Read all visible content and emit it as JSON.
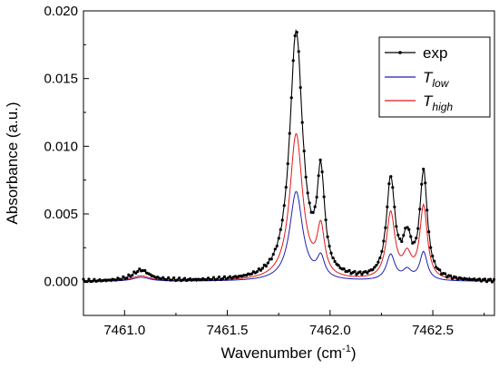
{
  "chart_data": {
    "type": "line",
    "title": "",
    "xlabel": "Wavenumber (cm",
    "xlabel_sup": "-1",
    "xlabel_tail": ")",
    "ylabel": "Absorbance (a.u.)",
    "xlim": [
      7460.8,
      7462.8
    ],
    "ylim": [
      -0.0025,
      0.02
    ],
    "xticks": [
      7461.0,
      7461.5,
      7462.0,
      7462.5
    ],
    "xtick_labels": [
      "7461.0",
      "7461.5",
      "7462.0",
      "7462.5"
    ],
    "yticks": [
      0.0,
      0.005,
      0.01,
      0.015,
      0.02
    ],
    "ytick_labels": [
      "0.000",
      "0.005",
      "0.010",
      "0.015",
      "0.020"
    ],
    "grid": false,
    "legend_position": "top-right",
    "series": [
      {
        "key": "exp",
        "name": "exp",
        "color": "#000000",
        "marker": "dot",
        "peaks": [
          {
            "center": 7461.08,
            "height": 0.0008,
            "width": 0.05
          },
          {
            "center": 7461.835,
            "height": 0.0183,
            "width": 0.038
          },
          {
            "center": 7461.955,
            "height": 0.0072,
            "width": 0.022
          },
          {
            "center": 7462.295,
            "height": 0.0073,
            "width": 0.025
          },
          {
            "center": 7462.375,
            "height": 0.0028,
            "width": 0.025
          },
          {
            "center": 7462.455,
            "height": 0.0078,
            "width": 0.022
          }
        ]
      },
      {
        "key": "tlow",
        "name_main": "T",
        "name_sub": "low",
        "color": "#1f1fb4",
        "marker": "none",
        "peaks": [
          {
            "center": 7461.08,
            "height": 0.0003,
            "width": 0.05
          },
          {
            "center": 7461.835,
            "height": 0.0066,
            "width": 0.038
          },
          {
            "center": 7461.955,
            "height": 0.0015,
            "width": 0.022
          },
          {
            "center": 7462.295,
            "height": 0.0019,
            "width": 0.025
          },
          {
            "center": 7462.375,
            "height": 0.0007,
            "width": 0.025
          },
          {
            "center": 7462.455,
            "height": 0.0021,
            "width": 0.022
          }
        ]
      },
      {
        "key": "thigh",
        "name_main": "T",
        "name_sub": "high",
        "color": "#e0181b",
        "marker": "none",
        "peaks": [
          {
            "center": 7461.08,
            "height": 0.0004,
            "width": 0.05
          },
          {
            "center": 7461.835,
            "height": 0.0108,
            "width": 0.038
          },
          {
            "center": 7461.955,
            "height": 0.0035,
            "width": 0.022
          },
          {
            "center": 7462.295,
            "height": 0.0049,
            "width": 0.025
          },
          {
            "center": 7462.375,
            "height": 0.0016,
            "width": 0.025
          },
          {
            "center": 7462.455,
            "height": 0.0054,
            "width": 0.022
          }
        ]
      }
    ],
    "x_step": 0.0044
  }
}
